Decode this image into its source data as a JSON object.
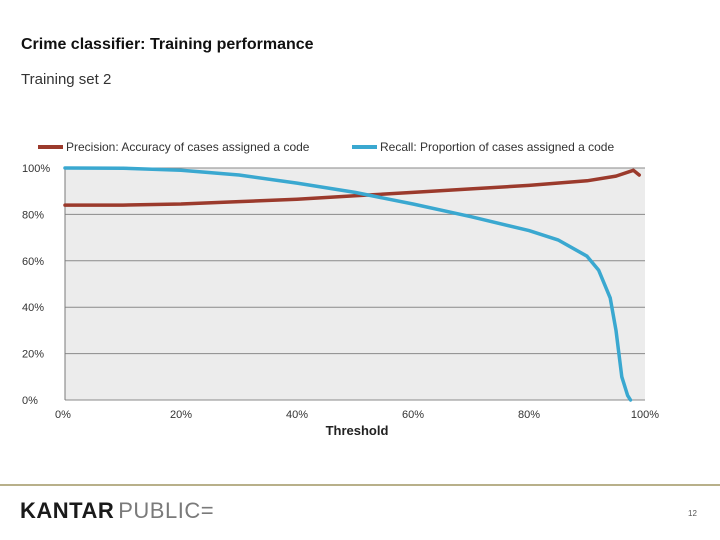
{
  "slide": {
    "title": "Crime classifier: Training performance",
    "subtitle": "Training set 2",
    "page_number": "12"
  },
  "logo": {
    "word1": "KANTAR",
    "word2": "PUBLIC="
  },
  "colors": {
    "precision": "#9b3a2c",
    "recall": "#3aa8d0",
    "plot_bg": "#ececec",
    "gridline": "#8a8a8a",
    "footer_rule": "#b8b08a"
  },
  "chart_data": {
    "type": "line",
    "title": "",
    "xlabel": "Threshold",
    "ylabel": "",
    "xlim": [
      0,
      1
    ],
    "ylim": [
      0,
      1
    ],
    "x_ticks": [
      0,
      0.2,
      0.4,
      0.6,
      0.8,
      1.0
    ],
    "x_tick_labels": [
      "0%",
      "20%",
      "40%",
      "60%",
      "80%",
      "100%"
    ],
    "y_ticks": [
      0,
      0.2,
      0.4,
      0.6,
      0.8,
      1.0
    ],
    "y_tick_labels": [
      "0%",
      "20%",
      "40%",
      "60%",
      "80%",
      "100%"
    ],
    "grid": true,
    "legend_position": "top",
    "series": [
      {
        "name": "Precision: Accuracy of cases assigned a code",
        "color": "#9b3a2c",
        "points": [
          [
            0.0,
            0.84
          ],
          [
            0.1,
            0.84
          ],
          [
            0.2,
            0.845
          ],
          [
            0.3,
            0.855
          ],
          [
            0.4,
            0.865
          ],
          [
            0.5,
            0.88
          ],
          [
            0.6,
            0.895
          ],
          [
            0.7,
            0.91
          ],
          [
            0.8,
            0.925
          ],
          [
            0.9,
            0.945
          ],
          [
            0.95,
            0.965
          ],
          [
            0.98,
            0.99
          ],
          [
            0.99,
            0.97
          ]
        ]
      },
      {
        "name": "Recall: Proportion of cases assigned a code",
        "color": "#3aa8d0",
        "points": [
          [
            0.0,
            1.0
          ],
          [
            0.1,
            0.999
          ],
          [
            0.2,
            0.99
          ],
          [
            0.3,
            0.97
          ],
          [
            0.4,
            0.935
          ],
          [
            0.5,
            0.895
          ],
          [
            0.6,
            0.845
          ],
          [
            0.7,
            0.79
          ],
          [
            0.8,
            0.73
          ],
          [
            0.85,
            0.69
          ],
          [
            0.9,
            0.62
          ],
          [
            0.92,
            0.56
          ],
          [
            0.94,
            0.44
          ],
          [
            0.95,
            0.3
          ],
          [
            0.96,
            0.1
          ],
          [
            0.97,
            0.02
          ],
          [
            0.975,
            0.0
          ]
        ]
      }
    ]
  }
}
